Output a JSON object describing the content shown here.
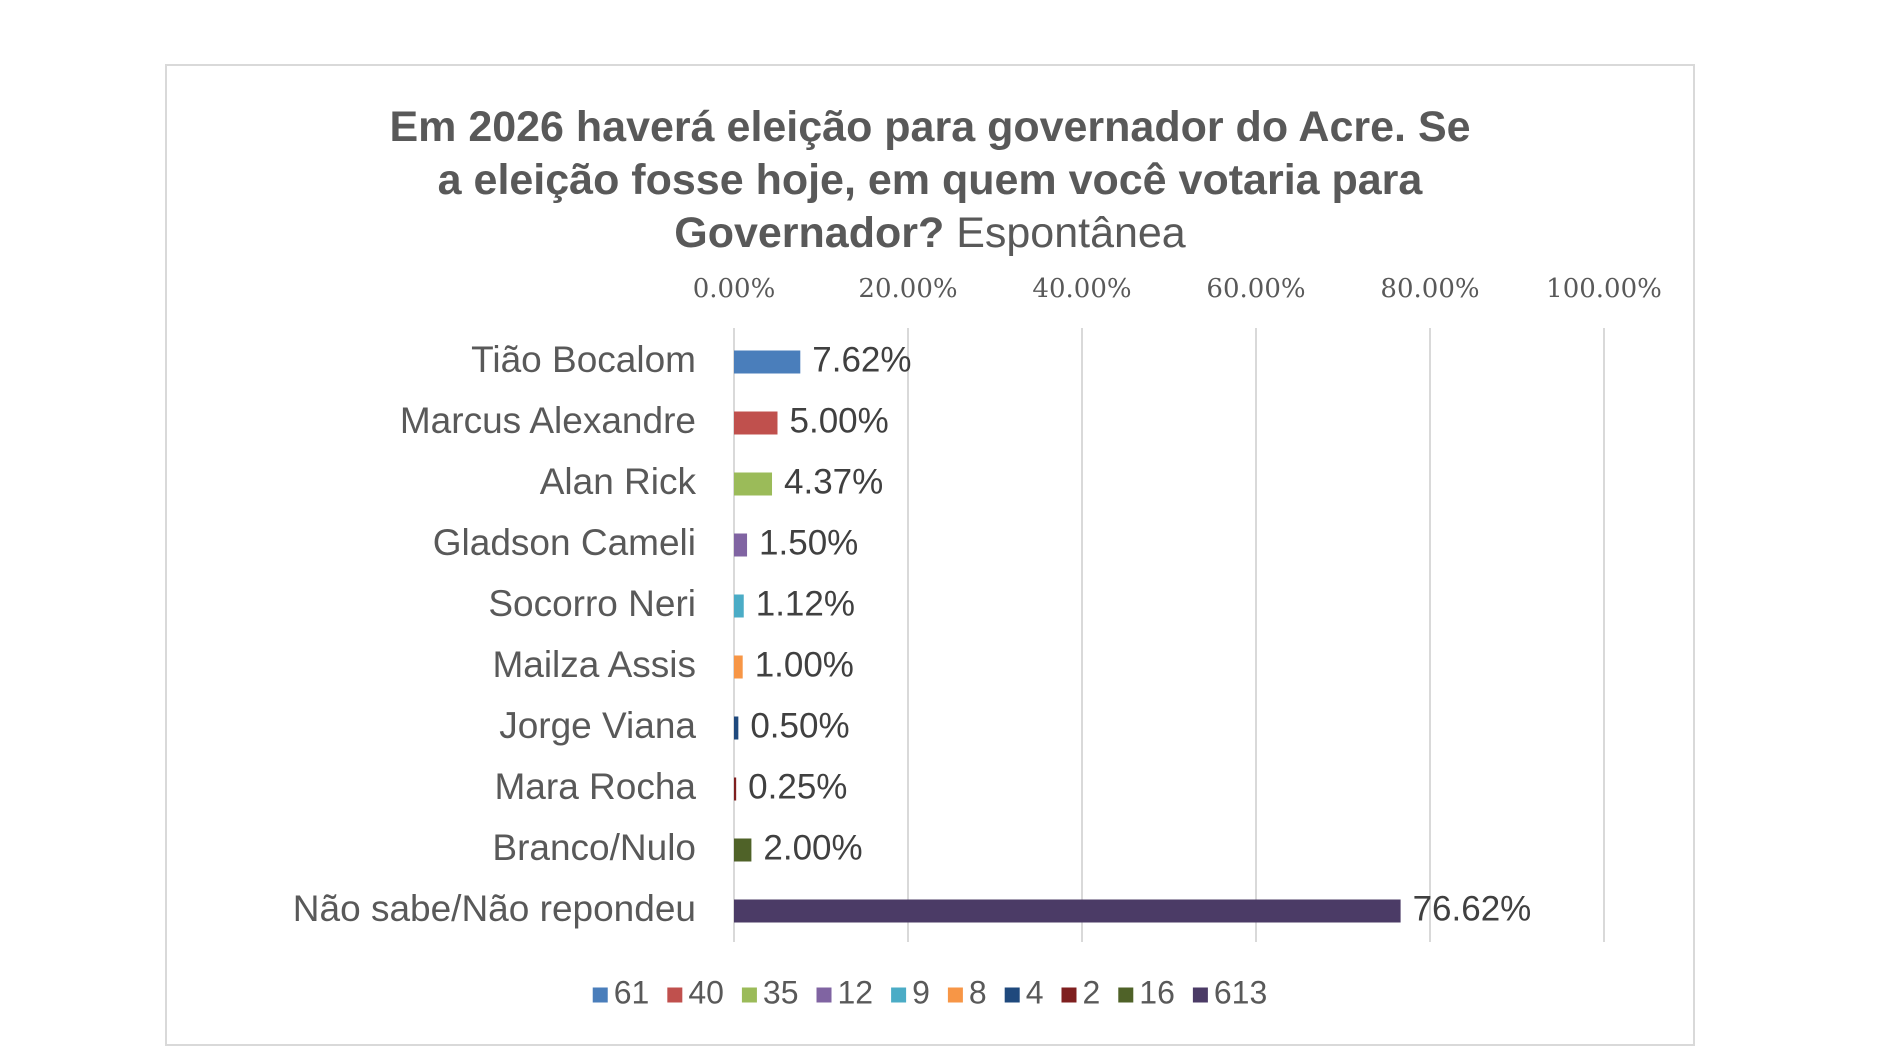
{
  "chart_data": {
    "type": "bar",
    "orientation": "horizontal",
    "title": {
      "lines": [
        [
          {
            "text": "Em 2026 haverá eleição para governador do Acre. Se",
            "bold": true
          }
        ],
        [
          {
            "text": "a eleição fosse hoje, em quem você votaria para",
            "bold": true
          }
        ],
        [
          {
            "text": "Governador?",
            "bold": true
          },
          {
            "text": " Espontânea",
            "bold": false
          }
        ]
      ]
    },
    "x_axis": {
      "position": "top",
      "range": [
        0,
        100
      ],
      "ticks": [
        0,
        20,
        40,
        60,
        80,
        100
      ],
      "tick_labels": [
        "0.00%",
        "20.00%",
        "40.00%",
        "60.00%",
        "80.00%",
        "100.00%"
      ],
      "grid": true
    },
    "categories": [
      "Tião Bocalom",
      "Marcus Alexandre",
      "Alan Rick",
      "Gladson Cameli",
      "Socorro Neri",
      "Mailza Assis",
      "Jorge Viana",
      "Mara Rocha",
      "Branco/Nulo",
      "Não sabe/Não repondeu"
    ],
    "values": [
      7.62,
      5.0,
      4.37,
      1.5,
      1.12,
      1.0,
      0.5,
      0.25,
      2.0,
      76.62
    ],
    "value_labels": [
      "7.62%",
      "5.00%",
      "4.37%",
      "1.50%",
      "1.12%",
      "1.00%",
      "0.50%",
      "0.25%",
      "2.00%",
      "76.62%"
    ],
    "colors": [
      "#4a7ebb",
      "#c0504d",
      "#9bbb59",
      "#8064a2",
      "#4bacc6",
      "#f79646",
      "#1f497d",
      "#7f1f1f",
      "#4f6228",
      "#4b3b66"
    ],
    "legend": {
      "placement": "bottom",
      "entries": [
        "61",
        "40",
        "35",
        "12",
        "9",
        "8",
        "4",
        "2",
        "16",
        "613"
      ]
    }
  }
}
